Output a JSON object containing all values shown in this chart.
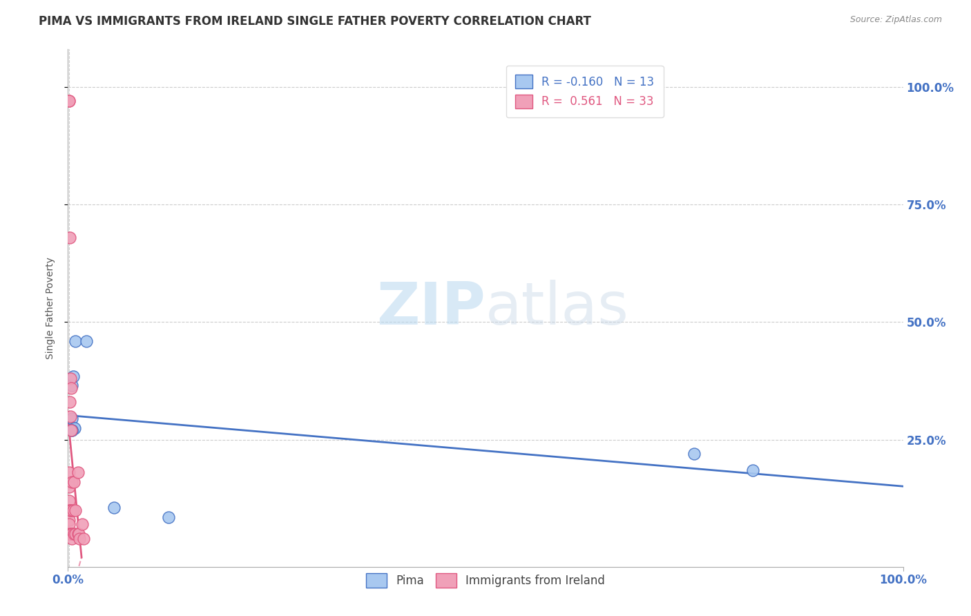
{
  "title": "PIMA VS IMMIGRANTS FROM IRELAND SINGLE FATHER POVERTY CORRELATION CHART",
  "source": "Source: ZipAtlas.com",
  "ylabel": "Single Father Poverty",
  "r_pima": -0.16,
  "n_pima": 13,
  "r_ireland": 0.561,
  "n_ireland": 33,
  "color_pima": "#A8C8F0",
  "color_ireland": "#F0A0B8",
  "color_pima_line": "#4472C4",
  "color_ireland_line": "#E05880",
  "watermark_zip": "ZIP",
  "watermark_atlas": "atlas",
  "pima_x": [
    0.005,
    0.005,
    0.006,
    0.007,
    0.008,
    0.009,
    0.022,
    0.75,
    0.82,
    0.005,
    0.005,
    0.055,
    0.12
  ],
  "pima_y": [
    0.295,
    0.365,
    0.385,
    0.275,
    0.275,
    0.46,
    0.46,
    0.22,
    0.185,
    0.27,
    0.27,
    0.105,
    0.085
  ],
  "ireland_x": [
    0.001,
    0.001,
    0.001,
    0.001,
    0.001,
    0.001,
    0.001,
    0.001,
    0.001,
    0.002,
    0.002,
    0.003,
    0.003,
    0.003,
    0.003,
    0.004,
    0.004,
    0.004,
    0.004,
    0.005,
    0.005,
    0.005,
    0.006,
    0.007,
    0.007,
    0.009,
    0.009,
    0.012,
    0.012,
    0.013,
    0.014,
    0.017,
    0.019
  ],
  "ireland_y": [
    0.97,
    0.97,
    0.18,
    0.15,
    0.12,
    0.1,
    0.08,
    0.07,
    0.05,
    0.68,
    0.33,
    0.38,
    0.3,
    0.1,
    0.05,
    0.36,
    0.27,
    0.1,
    0.05,
    0.16,
    0.05,
    0.04,
    0.1,
    0.16,
    0.05,
    0.1,
    0.05,
    0.18,
    0.05,
    0.05,
    0.04,
    0.07,
    0.04
  ],
  "ref_line_y": 0.275,
  "ref_line_x": 0.001,
  "xlim": [
    0.0,
    1.0
  ],
  "ylim": [
    -0.02,
    1.08
  ],
  "ytick_positions": [
    0.25,
    0.5,
    0.75,
    1.0
  ],
  "ytick_labels": [
    "25.0%",
    "50.0%",
    "75.0%",
    "100.0%"
  ],
  "xtick_positions": [
    0.0,
    1.0
  ],
  "xtick_labels": [
    "0.0%",
    "100.0%"
  ],
  "background_color": "#FFFFFF",
  "title_color": "#333333",
  "title_fontsize": 12,
  "axis_label_fontsize": 10,
  "tick_fontsize": 12,
  "legend_fontsize": 12,
  "grid_color": "#CCCCCC",
  "spine_color": "#AAAAAA"
}
